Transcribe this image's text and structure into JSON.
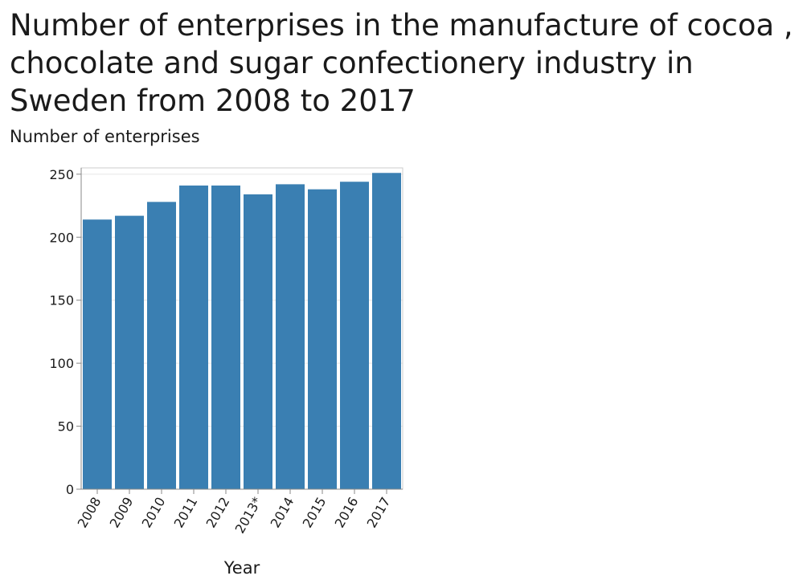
{
  "chart_data": {
    "type": "bar",
    "title": "Number of enterprises in the manufacture of cocoa , chocolate and sugar confectionery industry in Sweden from 2008 to 2017",
    "ylabel": "Number of enterprises",
    "xlabel": "Year",
    "categories": [
      "2008",
      "2009",
      "2010",
      "2011",
      "2012",
      "2013*",
      "2014",
      "2015",
      "2016",
      "2017"
    ],
    "values": [
      214,
      217,
      228,
      241,
      241,
      234,
      242,
      238,
      244,
      251
    ],
    "ylim": [
      0,
      255
    ],
    "yticks": [
      0,
      50,
      100,
      150,
      200,
      250
    ],
    "grid": true,
    "bar_color": "#3a7fb2"
  }
}
